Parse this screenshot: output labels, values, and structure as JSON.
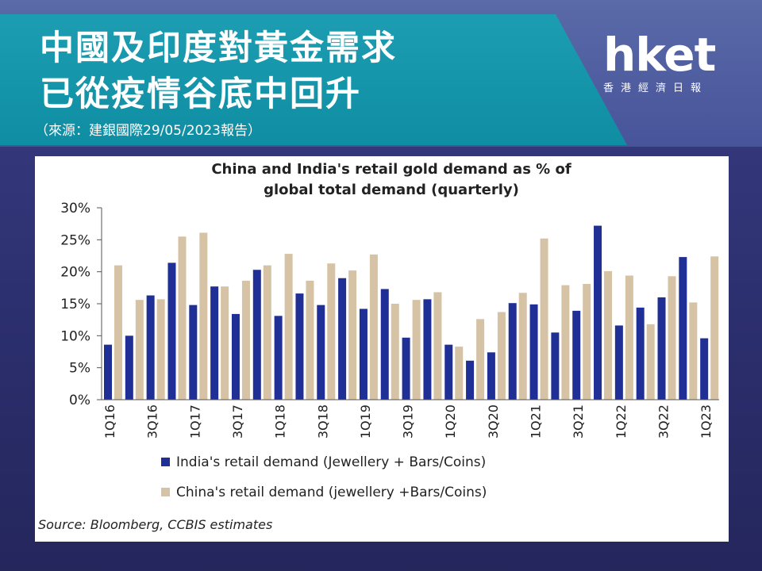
{
  "header": {
    "title_line1": "中國及印度對黃金需求",
    "title_line2": "已從疫情谷底中回升",
    "source_note": "（來源：建銀國際29/05/2023報告）"
  },
  "logo": {
    "main": "hket",
    "sub": "香港經濟日報"
  },
  "colors": {
    "banner": "#1d9db1",
    "india_bar": "#1f2f96",
    "china_bar": "#d6c3a5"
  },
  "chart_data": {
    "type": "bar",
    "title": "China and India's retail gold demand as % of global total demand (quarterly)",
    "title_line1": "China and India's retail gold demand as % of",
    "title_line2": "global total demand (quarterly)",
    "categories": [
      "1Q16",
      "2Q16",
      "3Q16",
      "4Q16",
      "1Q17",
      "2Q17",
      "3Q17",
      "4Q17",
      "1Q18",
      "2Q18",
      "3Q18",
      "4Q18",
      "1Q19",
      "2Q19",
      "3Q19",
      "4Q19",
      "1Q20",
      "2Q20",
      "3Q20",
      "4Q20",
      "1Q21",
      "2Q21",
      "3Q21",
      "4Q21",
      "1Q22",
      "2Q22",
      "3Q22",
      "4Q22",
      "1Q23"
    ],
    "x_tick_labels": [
      "1Q16",
      "3Q16",
      "1Q17",
      "3Q17",
      "1Q18",
      "3Q18",
      "1Q19",
      "3Q19",
      "1Q20",
      "3Q20",
      "1Q21",
      "3Q21",
      "1Q22",
      "3Q22",
      "1Q23"
    ],
    "series": [
      {
        "name": "India's retail demand (Jewellery + Bars/Coins)",
        "values": [
          8.6,
          10.0,
          16.3,
          21.4,
          14.8,
          17.7,
          13.4,
          20.3,
          13.1,
          16.6,
          14.8,
          19.0,
          14.2,
          17.3,
          9.7,
          15.7,
          8.6,
          6.1,
          7.4,
          15.1,
          14.9,
          10.5,
          13.9,
          27.2,
          11.6,
          14.4,
          16.0,
          22.3,
          9.6
        ]
      },
      {
        "name": "China's retail demand (jewellery +Bars/Coins)",
        "values": [
          21.0,
          15.6,
          15.7,
          25.5,
          26.1,
          17.7,
          18.6,
          21.0,
          22.8,
          18.6,
          21.3,
          20.2,
          22.7,
          15.0,
          15.6,
          16.8,
          8.3,
          12.6,
          13.7,
          16.7,
          25.2,
          17.9,
          18.1,
          20.1,
          19.4,
          11.8,
          19.3,
          15.2,
          22.4
        ]
      }
    ],
    "y_tick_labels": [
      "0%",
      "5%",
      "10%",
      "15%",
      "20%",
      "25%",
      "30%"
    ],
    "ylim": [
      0,
      30
    ],
    "xlabel": "",
    "ylabel": "",
    "grid": false,
    "legend_position": "bottom",
    "source": "Source: Bloomberg, CCBIS estimates"
  }
}
